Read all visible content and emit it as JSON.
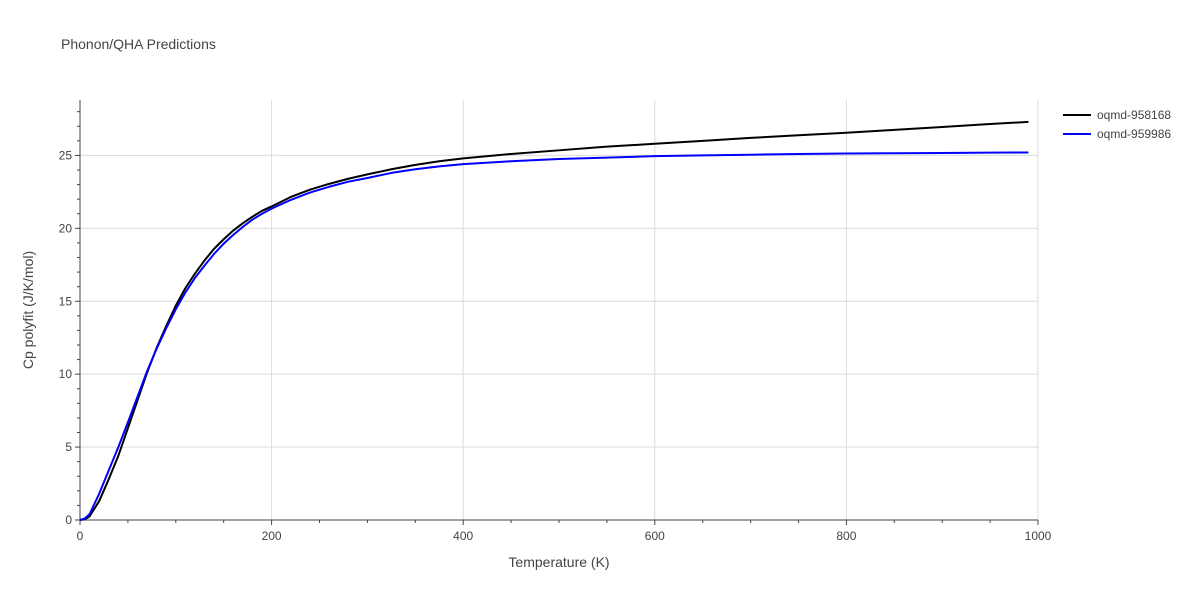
{
  "chart_data": {
    "type": "line",
    "title": "Phonon/QHA Predictions",
    "xlabel": "Temperature (K)",
    "ylabel": "Cp polyfit (J/K/mol)",
    "xlim": [
      0,
      1000
    ],
    "ylim": [
      0,
      28.8
    ],
    "x_ticks": [
      0,
      200,
      400,
      600,
      800,
      1000
    ],
    "y_ticks": [
      0,
      5,
      10,
      15,
      20,
      25
    ],
    "grid": true,
    "legend_position": "top-right",
    "series": [
      {
        "name": "oqmd-958168",
        "color": "#000000",
        "x": [
          0,
          5,
          10,
          20,
          30,
          40,
          50,
          60,
          70,
          80,
          90,
          100,
          110,
          120,
          130,
          140,
          150,
          160,
          170,
          180,
          190,
          200,
          220,
          240,
          260,
          280,
          300,
          325,
          350,
          375,
          400,
          450,
          500,
          550,
          600,
          650,
          700,
          750,
          800,
          850,
          900,
          950,
          990
        ],
        "y": [
          0,
          0.05,
          0.25,
          1.3,
          2.8,
          4.4,
          6.3,
          8.2,
          10.1,
          11.8,
          13.3,
          14.7,
          15.9,
          16.9,
          17.8,
          18.6,
          19.25,
          19.85,
          20.35,
          20.8,
          21.2,
          21.5,
          22.15,
          22.65,
          23.05,
          23.4,
          23.7,
          24.05,
          24.35,
          24.6,
          24.8,
          25.1,
          25.35,
          25.6,
          25.8,
          26.0,
          26.2,
          26.38,
          26.55,
          26.75,
          26.95,
          27.15,
          27.3
        ]
      },
      {
        "name": "oqmd-959986",
        "color": "#0000ff",
        "x": [
          0,
          5,
          10,
          20,
          30,
          40,
          50,
          60,
          70,
          80,
          90,
          100,
          110,
          120,
          130,
          140,
          150,
          160,
          170,
          180,
          190,
          200,
          220,
          240,
          260,
          280,
          300,
          325,
          350,
          375,
          400,
          450,
          500,
          550,
          600,
          650,
          700,
          750,
          800,
          850,
          900,
          950,
          990
        ],
        "y": [
          0,
          0.1,
          0.4,
          1.8,
          3.4,
          5.0,
          6.7,
          8.45,
          10.2,
          11.75,
          13.15,
          14.45,
          15.6,
          16.6,
          17.45,
          18.25,
          18.95,
          19.55,
          20.1,
          20.6,
          21.0,
          21.35,
          21.95,
          22.45,
          22.85,
          23.2,
          23.45,
          23.8,
          24.05,
          24.25,
          24.4,
          24.6,
          24.75,
          24.85,
          24.95,
          25.0,
          25.05,
          25.1,
          25.13,
          25.15,
          25.17,
          25.19,
          25.2
        ]
      }
    ]
  }
}
